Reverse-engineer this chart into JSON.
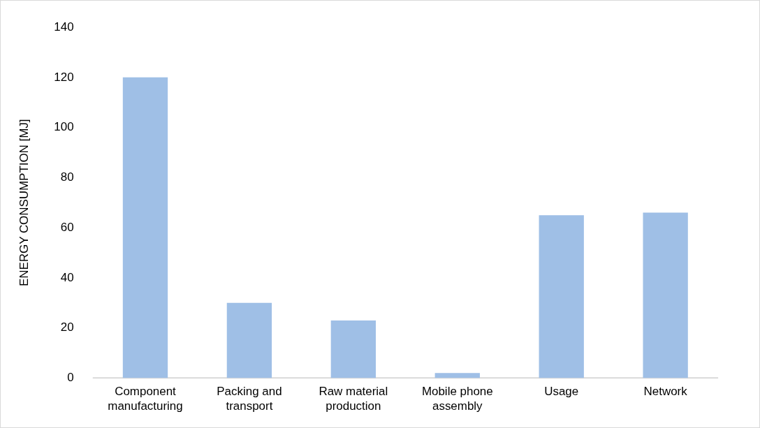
{
  "chart_data": {
    "type": "bar",
    "ylabel": "ENERGY CONSUMPTION [MJ]",
    "categories": [
      "Component manufacturing",
      "Packing and transport",
      "Raw material production",
      "Mobile phone assembly",
      "Usage",
      "Network"
    ],
    "values": [
      120,
      30,
      23,
      2,
      65,
      66
    ],
    "color": "#9fbfe6",
    "ylim": [
      0,
      140
    ],
    "yticks": [
      0,
      20,
      40,
      60,
      80,
      100,
      120,
      140
    ],
    "grid": false
  }
}
